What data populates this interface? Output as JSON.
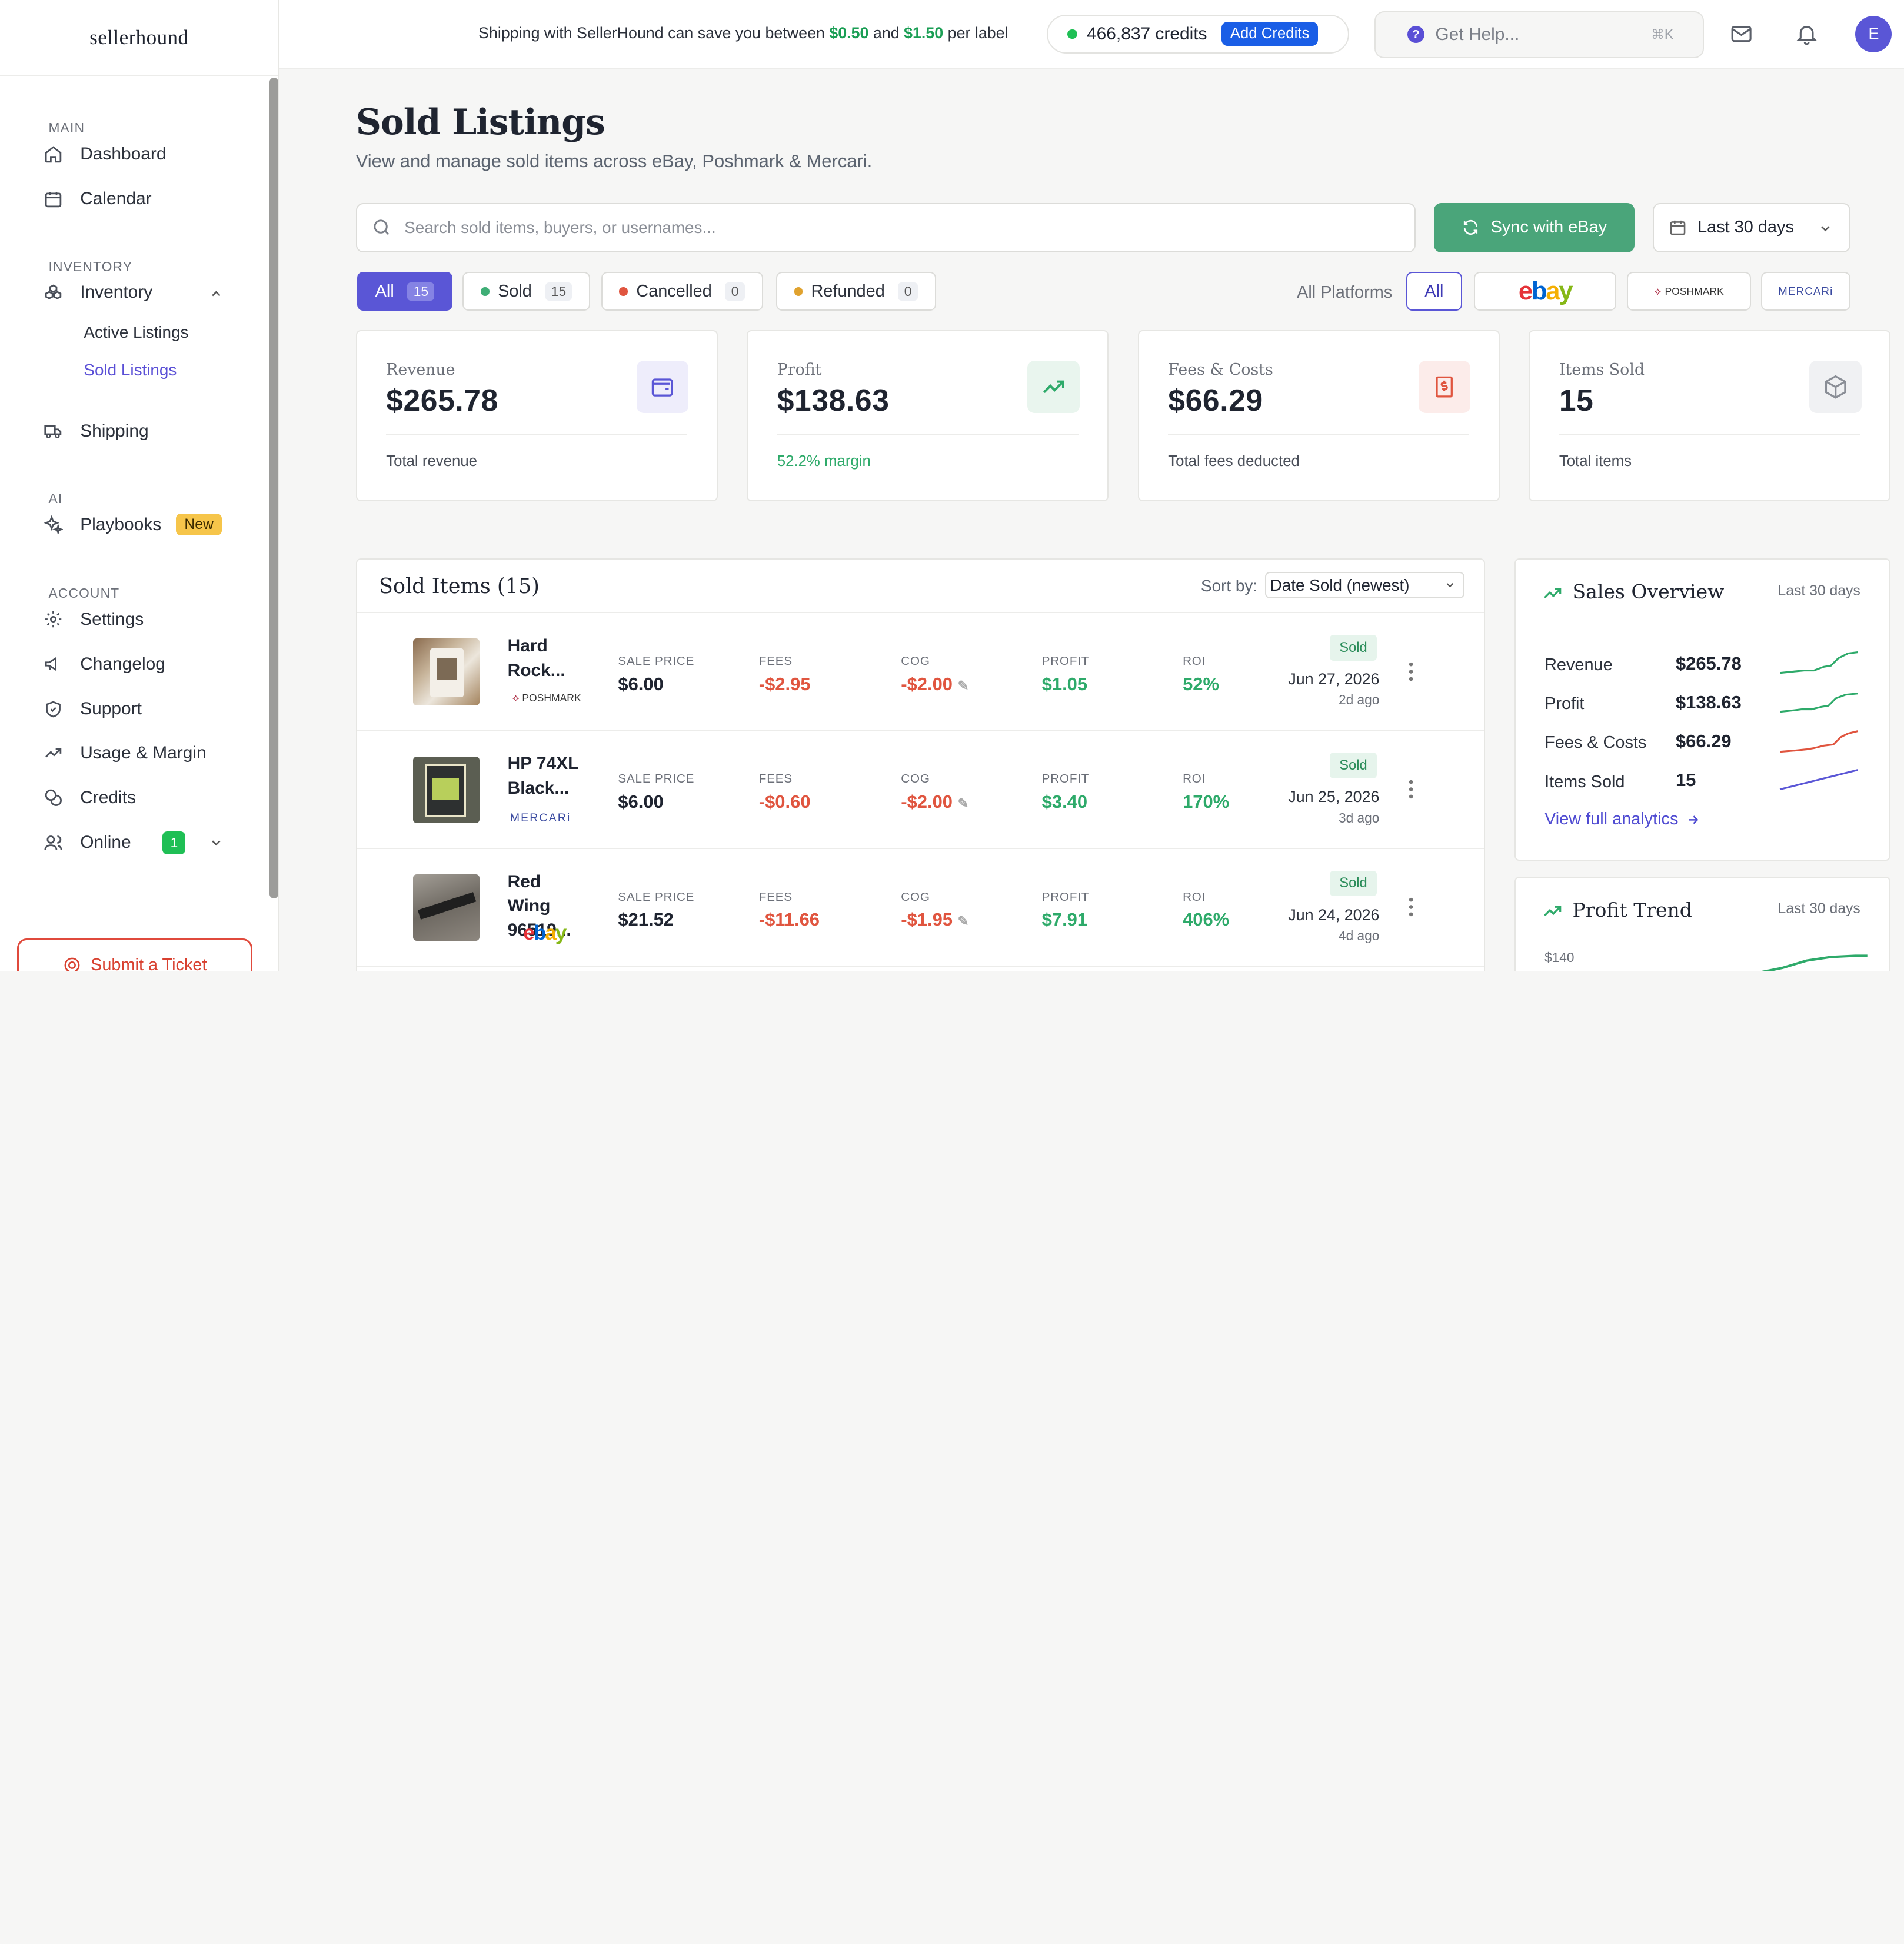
{
  "app": {
    "logo": "sellerhound"
  },
  "topbar": {
    "promo_prefix": "Shipping with SellerHound can save you between",
    "promo_low": "$0.50",
    "promo_and": "and",
    "promo_high": "$1.50",
    "promo_suffix": "per label",
    "credits": "466,837 credits",
    "add_credits": "Add Credits",
    "help_placeholder": "Get Help...",
    "help_shortcut": "⌘K",
    "avatar_initial": "E"
  },
  "sidebar": {
    "sections": {
      "main": "MAIN",
      "inventory": "INVENTORY",
      "ai": "AI",
      "account": "ACCOUNT"
    },
    "items": {
      "dashboard": "Dashboard",
      "calendar": "Calendar",
      "inventory": "Inventory",
      "active_listings": "Active Listings",
      "sold_listings": "Sold Listings",
      "shipping": "Shipping",
      "playbooks": "Playbooks",
      "playbooks_badge": "New",
      "settings": "Settings",
      "changelog": "Changelog",
      "support": "Support",
      "usage_margin": "Usage & Margin",
      "credits": "Credits",
      "online": "Online",
      "online_count": "1"
    },
    "submit_ticket": "Submit a Ticket"
  },
  "page": {
    "title": "Sold Listings",
    "subtitle": "View and manage sold items across eBay, Poshmark & Mercari.",
    "search_placeholder": "Search sold items, buyers, or usernames...",
    "sync_button": "Sync with eBay",
    "date_range": "Last 30 days"
  },
  "filters": {
    "tabs": [
      {
        "label": "All",
        "count": "15"
      },
      {
        "label": "Sold",
        "count": "15"
      },
      {
        "label": "Cancelled",
        "count": "0"
      },
      {
        "label": "Refunded",
        "count": "0"
      }
    ],
    "platforms_label": "All Platforms",
    "platform_all": "All",
    "platform_ebay": "ebay",
    "platform_poshmark": "POSHMARK",
    "platform_mercari": "MERCARi"
  },
  "stats": [
    {
      "label": "Revenue",
      "value": "$265.78",
      "foot": "Total revenue"
    },
    {
      "label": "Profit",
      "value": "$138.63",
      "foot": "52.2% margin"
    },
    {
      "label": "Fees & Costs",
      "value": "$66.29",
      "foot": "Total fees deducted"
    },
    {
      "label": "Items Sold",
      "value": "15",
      "foot": "Total items"
    }
  ],
  "sold_items": {
    "title": "Sold Items (15)",
    "sort_label": "Sort by:",
    "sort_value": "Date Sold (newest)",
    "col_headers": {
      "sale": "SALE PRICE",
      "fees": "FEES",
      "cog": "COG",
      "profit": "PROFIT",
      "roi": "ROI"
    },
    "rows": [
      {
        "name": "Hard Rock...",
        "platform": "POSHMARK",
        "sale": "$6.00",
        "fees": "-$2.95",
        "cog": "-$2.00",
        "profit": "$1.05",
        "roi": "52%",
        "status": "Sold",
        "date": "Jun 27, 2026",
        "ago": "2d ago"
      },
      {
        "name": "HP 74XL Black...",
        "platform": "MERCARi",
        "sale": "$6.00",
        "fees": "-$0.60",
        "cog": "-$2.00",
        "profit": "$3.40",
        "roi": "170%",
        "status": "Sold",
        "date": "Jun 25, 2026",
        "ago": "3d ago"
      },
      {
        "name": "Red Wing 96519...",
        "platform": "ebay",
        "sale": "$21.52",
        "fees": "-$11.66",
        "cog": "-$1.95",
        "profit": "$7.91",
        "roi": "406%",
        "status": "Sold",
        "date": "Jun 24, 2026",
        "ago": "4d ago"
      }
    ]
  },
  "sales_overview": {
    "title": "Sales Overview",
    "range": "Last 30 days",
    "rows": [
      {
        "label": "Revenue",
        "value": "$265.78",
        "color": "#2eaa6a"
      },
      {
        "label": "Profit",
        "value": "$138.63",
        "color": "#2eaa6a"
      },
      {
        "label": "Fees & Costs",
        "value": "$66.29",
        "color": "#e0553f"
      },
      {
        "label": "Items Sold",
        "value": "15",
        "color": "#5a56d6"
      }
    ],
    "link": "View full analytics"
  },
  "profit_trend": {
    "title": "Profit Trend",
    "range": "Last 30 days",
    "y_tick": "$140"
  }
}
